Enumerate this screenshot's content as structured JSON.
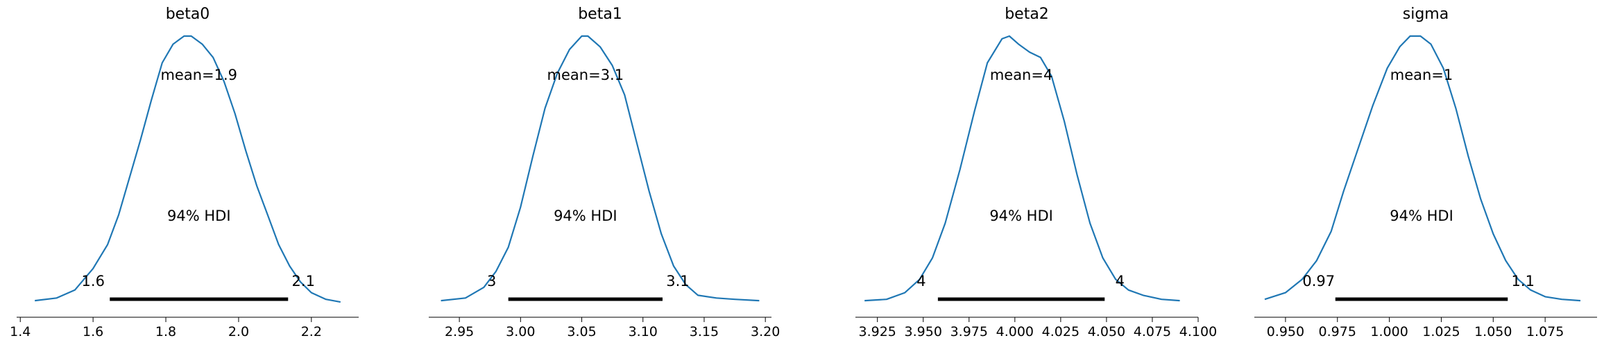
{
  "chart_data": [
    {
      "type": "area",
      "title": "beta0",
      "mean_label": "mean=1.9",
      "hdi_label": "94% HDI",
      "hdi": [
        1.646,
        2.136
      ],
      "hdi_low_label": "1.6",
      "hdi_high_label": "2.1",
      "xlim": [
        1.39,
        2.33
      ],
      "xticks": [
        1.4,
        1.6,
        1.8,
        2.0,
        2.2
      ],
      "xtick_labels": [
        "1.4",
        "1.6",
        "1.8",
        "2.0",
        "2.2"
      ],
      "color": "#1f77b4",
      "density": {
        "x": [
          1.44,
          1.5,
          1.55,
          1.6,
          1.64,
          1.67,
          1.7,
          1.73,
          1.76,
          1.79,
          1.82,
          1.85,
          1.87,
          1.9,
          1.93,
          1.96,
          1.99,
          2.02,
          2.05,
          2.08,
          2.11,
          2.14,
          2.17,
          2.2,
          2.24,
          2.28
        ],
        "y": [
          0.01,
          0.02,
          0.05,
          0.13,
          0.22,
          0.33,
          0.47,
          0.61,
          0.76,
          0.9,
          0.97,
          1.0,
          1.0,
          0.97,
          0.92,
          0.83,
          0.71,
          0.57,
          0.44,
          0.33,
          0.22,
          0.14,
          0.08,
          0.04,
          0.015,
          0.005
        ]
      }
    },
    {
      "type": "area",
      "title": "beta1",
      "mean_label": "mean=3.1",
      "hdi_label": "94% HDI",
      "hdi": [
        2.99,
        3.116
      ],
      "hdi_low_label": "3",
      "hdi_high_label": "3.1",
      "xlim": [
        2.925,
        3.205
      ],
      "xticks": [
        2.95,
        3.0,
        3.05,
        3.1,
        3.15,
        3.2
      ],
      "xtick_labels": [
        "2.95",
        "3.00",
        "3.05",
        "3.10",
        "3.15",
        "3.20"
      ],
      "color": "#1f77b4",
      "density": {
        "x": [
          2.935,
          2.955,
          2.97,
          2.98,
          2.99,
          3.0,
          3.01,
          3.02,
          3.03,
          3.04,
          3.05,
          3.055,
          3.065,
          3.075,
          3.085,
          3.095,
          3.105,
          3.115,
          3.125,
          3.135,
          3.145,
          3.16,
          3.175,
          3.195
        ],
        "y": [
          0.01,
          0.02,
          0.06,
          0.12,
          0.21,
          0.36,
          0.55,
          0.73,
          0.86,
          0.95,
          1.0,
          1.0,
          0.96,
          0.89,
          0.78,
          0.6,
          0.42,
          0.26,
          0.14,
          0.07,
          0.03,
          0.02,
          0.015,
          0.01
        ]
      }
    },
    {
      "type": "area",
      "title": "beta2",
      "mean_label": "mean=4",
      "hdi_label": "94% HDI",
      "hdi": [
        3.958,
        4.049
      ],
      "hdi_low_label": "4",
      "hdi_high_label": "4",
      "xlim": [
        3.913,
        4.1
      ],
      "xticks": [
        3.925,
        3.95,
        3.975,
        4.0,
        4.025,
        4.05,
        4.075,
        4.1
      ],
      "xtick_labels": [
        "3.925",
        "3.950",
        "3.975",
        "4.000",
        "4.025",
        "4.050",
        "4.075",
        "4.100"
      ],
      "color": "#1f77b4",
      "density": {
        "x": [
          3.918,
          3.93,
          3.94,
          3.948,
          3.955,
          3.962,
          3.97,
          3.978,
          3.985,
          3.993,
          3.997,
          4.002,
          4.008,
          4.014,
          4.02,
          4.027,
          4.034,
          4.041,
          4.048,
          4.055,
          4.062,
          4.07,
          4.08,
          4.09
        ],
        "y": [
          0.01,
          0.015,
          0.04,
          0.09,
          0.17,
          0.3,
          0.5,
          0.72,
          0.9,
          0.99,
          1.0,
          0.97,
          0.94,
          0.92,
          0.85,
          0.68,
          0.48,
          0.3,
          0.17,
          0.09,
          0.05,
          0.03,
          0.015,
          0.01
        ]
      }
    },
    {
      "type": "area",
      "title": "sigma",
      "mean_label": "mean=1",
      "hdi_label": "94% HDI",
      "hdi": [
        0.974,
        1.057
      ],
      "hdi_low_label": "0.97",
      "hdi_high_label": "1.1",
      "xlim": [
        0.935,
        1.1
      ],
      "xticks": [
        0.95,
        0.975,
        1.0,
        1.025,
        1.05,
        1.075
      ],
      "xtick_labels": [
        "0.950",
        "0.975",
        "1.000",
        "1.025",
        "1.050",
        "1.075"
      ],
      "color": "#1f77b4",
      "density": {
        "x": [
          0.94,
          0.95,
          0.958,
          0.965,
          0.972,
          0.978,
          0.985,
          0.992,
          0.999,
          1.005,
          1.01,
          1.015,
          1.02,
          1.026,
          1.032,
          1.038,
          1.044,
          1.05,
          1.056,
          1.062,
          1.068,
          1.075,
          1.083,
          1.092
        ],
        "y": [
          0.015,
          0.04,
          0.09,
          0.16,
          0.27,
          0.42,
          0.58,
          0.74,
          0.88,
          0.96,
          1.0,
          1.0,
          0.97,
          0.88,
          0.73,
          0.55,
          0.39,
          0.26,
          0.16,
          0.09,
          0.05,
          0.025,
          0.015,
          0.01
        ]
      }
    }
  ]
}
